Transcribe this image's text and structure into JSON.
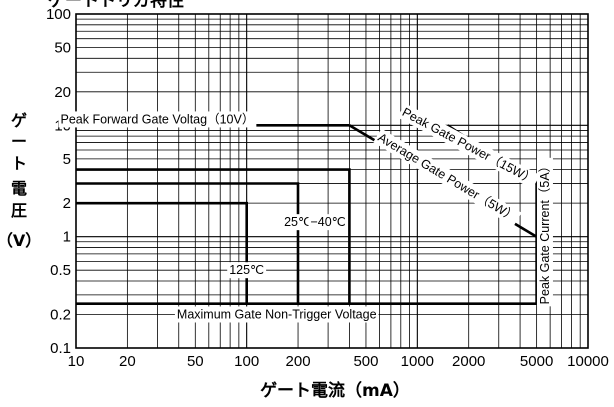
{
  "chart_data": {
    "type": "line",
    "title": "ゲートトリガ特性",
    "xlabel": "ゲート電流（mA）",
    "ylabel": [
      "ゲ",
      "ー",
      "ト",
      "電",
      "圧",
      "（V）"
    ],
    "xscale": "log",
    "yscale": "log",
    "xlim": [
      10,
      10000
    ],
    "ylim": [
      0.1,
      100
    ],
    "grid": true,
    "x_tick_labels": [
      {
        "value": 10,
        "label": "10"
      },
      {
        "value": 20,
        "label": "20"
      },
      {
        "value": 50,
        "label": "50"
      },
      {
        "value": 100,
        "label": "100"
      },
      {
        "value": 200,
        "label": "200"
      },
      {
        "value": 500,
        "label": "500"
      },
      {
        "value": 1000,
        "label": "1000"
      },
      {
        "value": 2000,
        "label": "2000"
      },
      {
        "value": 5000,
        "label": "5000"
      },
      {
        "value": 10000,
        "label": "10000"
      }
    ],
    "y_tick_labels": [
      {
        "value": 100,
        "label": "100"
      },
      {
        "value": 50,
        "label": "50"
      },
      {
        "value": 20,
        "label": "20"
      },
      {
        "value": 10,
        "label": "10"
      },
      {
        "value": 5,
        "label": "5"
      },
      {
        "value": 2,
        "label": "2"
      },
      {
        "value": 1,
        "label": "1"
      },
      {
        "value": 0.5,
        "label": "0.5"
      },
      {
        "value": 0.2,
        "label": "0.2"
      },
      {
        "value": 0.1,
        "label": "0.1"
      }
    ],
    "series": [
      {
        "name": "Peak Forward Gate Voltag（10V）",
        "x": [
          10,
          400
        ],
        "y": [
          10,
          10
        ]
      },
      {
        "name": "Peak Gate Power（15W）",
        "x": [
          1500,
          5000
        ],
        "y": [
          10,
          3
        ]
      },
      {
        "name": "Average Gate Power（5W）",
        "x": [
          400,
          5000
        ],
        "y": [
          10,
          1
        ]
      },
      {
        "name": "Peak Gate Current（5A）",
        "x": [
          5000,
          5000
        ],
        "y": [
          0.25,
          3
        ]
      },
      {
        "name": "Maximum Gate Non-Trigger Voltage",
        "x": [
          10,
          5000
        ],
        "y": [
          0.25,
          0.25
        ]
      },
      {
        "name": "125℃",
        "x": [
          10,
          100,
          100
        ],
        "y": [
          2,
          2,
          0.25
        ]
      },
      {
        "name": "25℃",
        "x": [
          10,
          200,
          200
        ],
        "y": [
          3,
          3,
          0.25
        ]
      },
      {
        "name": "−40℃",
        "x": [
          10,
          400,
          400
        ],
        "y": [
          4,
          4,
          0.25
        ]
      }
    ],
    "annotations": [
      {
        "text": "Peak Forward Gate Voltag（10V）",
        "x": 30,
        "y": 11.3
      },
      {
        "text": "Peak Gate Power（15W）",
        "x": 2000,
        "y": 6.5,
        "rotate": 28
      },
      {
        "text": "Average Gate Power（5W）",
        "x": 1500,
        "y": 3.4,
        "rotate": 31
      },
      {
        "text": "Peak Gate Current（5A）",
        "x": 5600,
        "y": 1.1,
        "rotate": -90
      },
      {
        "text": "Maximum Gate Non-Trigger Voltage",
        "x": 150,
        "y": 0.2
      },
      {
        "text": "125℃",
        "x": 100,
        "y": 0.5
      },
      {
        "text": "25℃",
        "x": 200,
        "y": 1.35
      },
      {
        "text": "−40℃",
        "x": 300,
        "y": 1.35
      }
    ]
  }
}
